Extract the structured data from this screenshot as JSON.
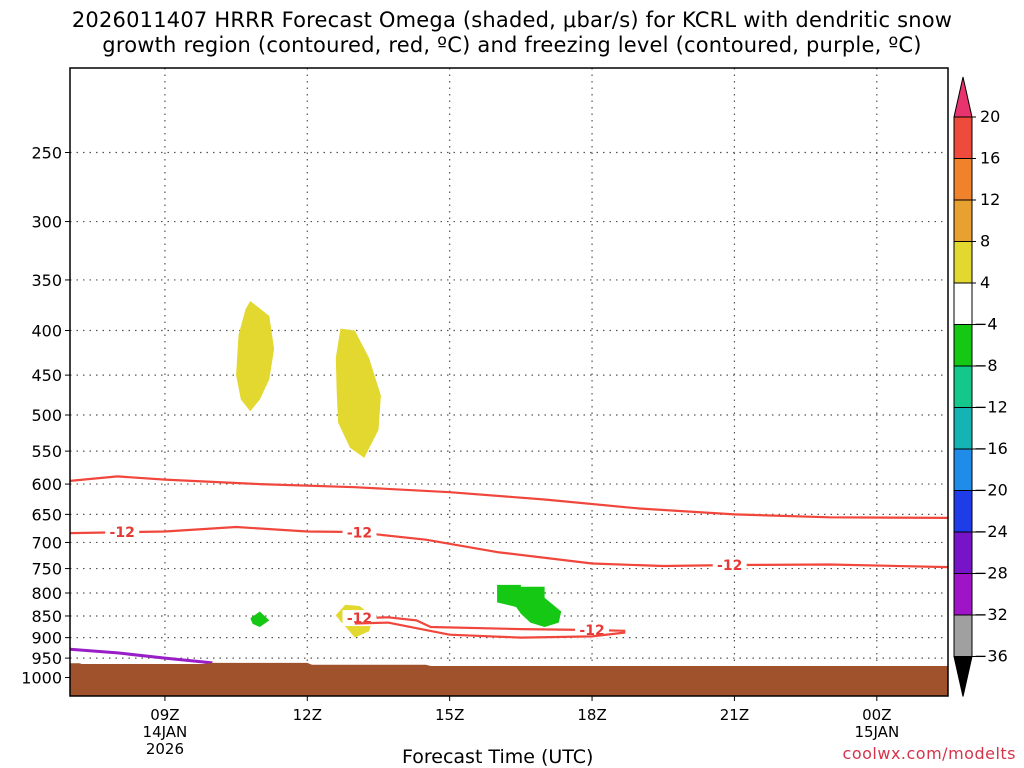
{
  "title": {
    "line1": "2026011407 HRRR Forecast Omega (shaded, μbar/s) for KCRL with dendritic snow",
    "line2": "growth region (contoured, red, ºC) and freezing level (contoured, purple, ºC)"
  },
  "xlabel": "Forecast Time (UTC)",
  "credit": "coolwx.com/modelts",
  "colors": {
    "dgz": "#f0463c",
    "freezing": "#9a1ec8",
    "terrain": "#a0522d",
    "grid": "#555555"
  },
  "chart_data": {
    "type": "heatmap",
    "title": "2026011407 HRRR Forecast Omega (shaded, μbar/s) for KCRL with dendritic snow growth region (contoured, red, ºC) and freezing level (contoured, purple, ºC)",
    "xlabel": "Forecast Time (UTC)",
    "ylabel": "",
    "y_scale": "log-pressure (hPa, inverted)",
    "ylim": [
      1050,
      200
    ],
    "xlim": [
      7,
      25.5
    ],
    "grid": true,
    "y_ticks": [
      250,
      300,
      350,
      400,
      450,
      500,
      550,
      600,
      650,
      700,
      750,
      800,
      850,
      900,
      950,
      1000
    ],
    "x_ticks": [
      {
        "x": 9,
        "label": "09Z",
        "sub": [
          "14JAN",
          "2026"
        ]
      },
      {
        "x": 12,
        "label": "12Z",
        "sub": []
      },
      {
        "x": 15,
        "label": "15Z",
        "sub": []
      },
      {
        "x": 18,
        "label": "18Z",
        "sub": []
      },
      {
        "x": 21,
        "label": "21Z",
        "sub": []
      },
      {
        "x": 24,
        "label": "00Z",
        "sub": [
          "15JAN"
        ]
      }
    ],
    "colorbar": {
      "levels": [
        20,
        16,
        12,
        8,
        4,
        -4,
        -8,
        -12,
        -16,
        -20,
        -24,
        -28,
        -32,
        -36
      ],
      "colors": [
        "#e8336e",
        "#ee4b3c",
        "#f0822c",
        "#e8a030",
        "#e2d830",
        "#ffffff",
        "#14c814",
        "#14c88c",
        "#14b4b4",
        "#1e8ce8",
        "#1e3ce8",
        "#7814c8",
        "#a014c8",
        "#a0a0a0",
        "#000000"
      ]
    },
    "omega_regions": [
      {
        "category": "4 to 8",
        "color": "#e2d830",
        "pts": [
          [
            10.8,
            370
          ],
          [
            11.2,
            385
          ],
          [
            11.3,
            420
          ],
          [
            11.2,
            455
          ],
          [
            11.0,
            480
          ],
          [
            10.8,
            495
          ],
          [
            10.6,
            480
          ],
          [
            10.5,
            450
          ],
          [
            10.55,
            405
          ],
          [
            10.7,
            378
          ]
        ]
      },
      {
        "category": "4 to 8",
        "color": "#e2d830",
        "pts": [
          [
            12.7,
            398
          ],
          [
            13.0,
            400
          ],
          [
            13.3,
            430
          ],
          [
            13.55,
            475
          ],
          [
            13.5,
            520
          ],
          [
            13.2,
            560
          ],
          [
            12.9,
            545
          ],
          [
            12.65,
            510
          ],
          [
            12.62,
            470
          ],
          [
            12.6,
            430
          ]
        ]
      },
      {
        "category": "4 to 8",
        "color": "#e2d830",
        "pts": [
          [
            12.6,
            848
          ],
          [
            12.8,
            825
          ],
          [
            13.1,
            828
          ],
          [
            13.4,
            852
          ],
          [
            13.3,
            885
          ],
          [
            13.0,
            900
          ],
          [
            12.85,
            880
          ],
          [
            12.7,
            862
          ]
        ]
      },
      {
        "category": "-4 to -8",
        "color": "#14c814",
        "pts": [
          [
            10.8,
            855
          ],
          [
            11.0,
            840
          ],
          [
            11.2,
            860
          ],
          [
            11.0,
            875
          ],
          [
            10.85,
            868
          ]
        ]
      },
      {
        "category": "-4 to -8",
        "color": "#14c814",
        "pts": [
          [
            16.0,
            783
          ],
          [
            16.5,
            783
          ],
          [
            16.5,
            787
          ],
          [
            17.0,
            787
          ],
          [
            17.0,
            810
          ],
          [
            17.35,
            840
          ],
          [
            17.3,
            865
          ],
          [
            17.0,
            875
          ],
          [
            16.7,
            865
          ],
          [
            16.5,
            845
          ],
          [
            16.4,
            830
          ],
          [
            16.0,
            820
          ]
        ]
      }
    ],
    "series": [
      {
        "name": "-12",
        "color": "#f0463c",
        "label_at": [],
        "x": [
          7.0,
          8.0,
          9.0,
          11.0,
          13.0,
          15.0,
          17.0,
          19.0,
          21.0,
          23.0,
          25.5
        ],
        "y": [
          595,
          588,
          593,
          600,
          605,
          613,
          625,
          640,
          650,
          655,
          656
        ]
      },
      {
        "name": "-12",
        "color": "#f0463c",
        "label_at": [
          8.1,
          13.1,
          20.9
        ],
        "x": [
          7.0,
          9.0,
          10.5,
          12.0,
          13.0,
          14.5,
          16.0,
          18.0,
          19.5,
          21.0,
          23.0,
          25.5
        ],
        "y": [
          683,
          680,
          672,
          680,
          681,
          695,
          718,
          740,
          745,
          743,
          742,
          747
        ]
      },
      {
        "name": "-12",
        "color": "#f0463c",
        "label_at": [
          13.1,
          18.0
        ],
        "x": [
          13.0,
          13.7,
          14.3,
          14.6,
          16.5,
          18.0,
          18.7
        ],
        "y": [
          855,
          853,
          860,
          875,
          880,
          882,
          884
        ]
      },
      {
        "name": "-12",
        "color": "#f0463c",
        "label_at": [],
        "x": [
          13.0,
          13.7,
          14.3,
          15.0,
          16.5,
          18.0,
          18.7
        ],
        "y": [
          867,
          865,
          878,
          893,
          900,
          897,
          888
        ]
      },
      {
        "name": "freezing",
        "color": "#9a1ec8",
        "label_at": [],
        "x": [
          7.0,
          8.0,
          9.0,
          10.0
        ],
        "y": [
          928,
          937,
          950,
          962
        ]
      }
    ],
    "terrain": {
      "color": "#a0522d",
      "x": [
        7.0,
        7.2,
        7.25,
        9.8,
        10.0,
        12.0,
        12.1,
        14.5,
        14.6,
        25.5
      ],
      "y": [
        963,
        963,
        965,
        965,
        962,
        962,
        967,
        967,
        970,
        970
      ]
    }
  }
}
